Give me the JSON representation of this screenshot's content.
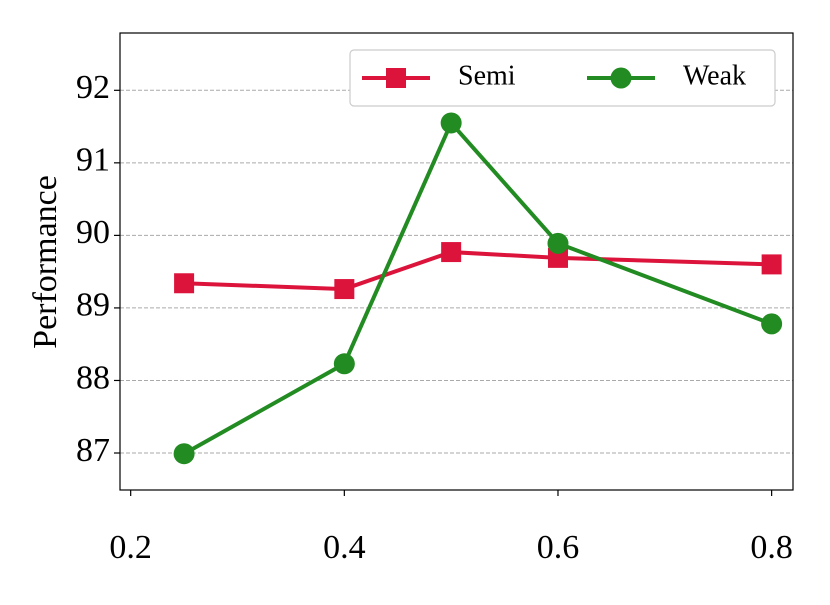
{
  "chart_data": {
    "type": "line",
    "ylabel": "Performance",
    "x": [
      0.25,
      0.4,
      0.5,
      0.6,
      0.8
    ],
    "series": [
      {
        "name": "Semi",
        "color": "#dc143c",
        "marker": "square",
        "values": [
          89.34,
          89.26,
          89.77,
          89.69,
          89.6
        ]
      },
      {
        "name": "Weak",
        "color": "#228b22",
        "marker": "circle",
        "values": [
          86.99,
          88.23,
          91.55,
          89.89,
          88.78
        ]
      }
    ],
    "xlim": [
      0.19,
      0.82
    ],
    "xticks": [
      0.2,
      0.4,
      0.6,
      0.8
    ],
    "ylim": [
      86.49,
      92.79
    ],
    "yticks": [
      87,
      88,
      89,
      90,
      91,
      92
    ],
    "grid": true,
    "legend": "upper right"
  }
}
